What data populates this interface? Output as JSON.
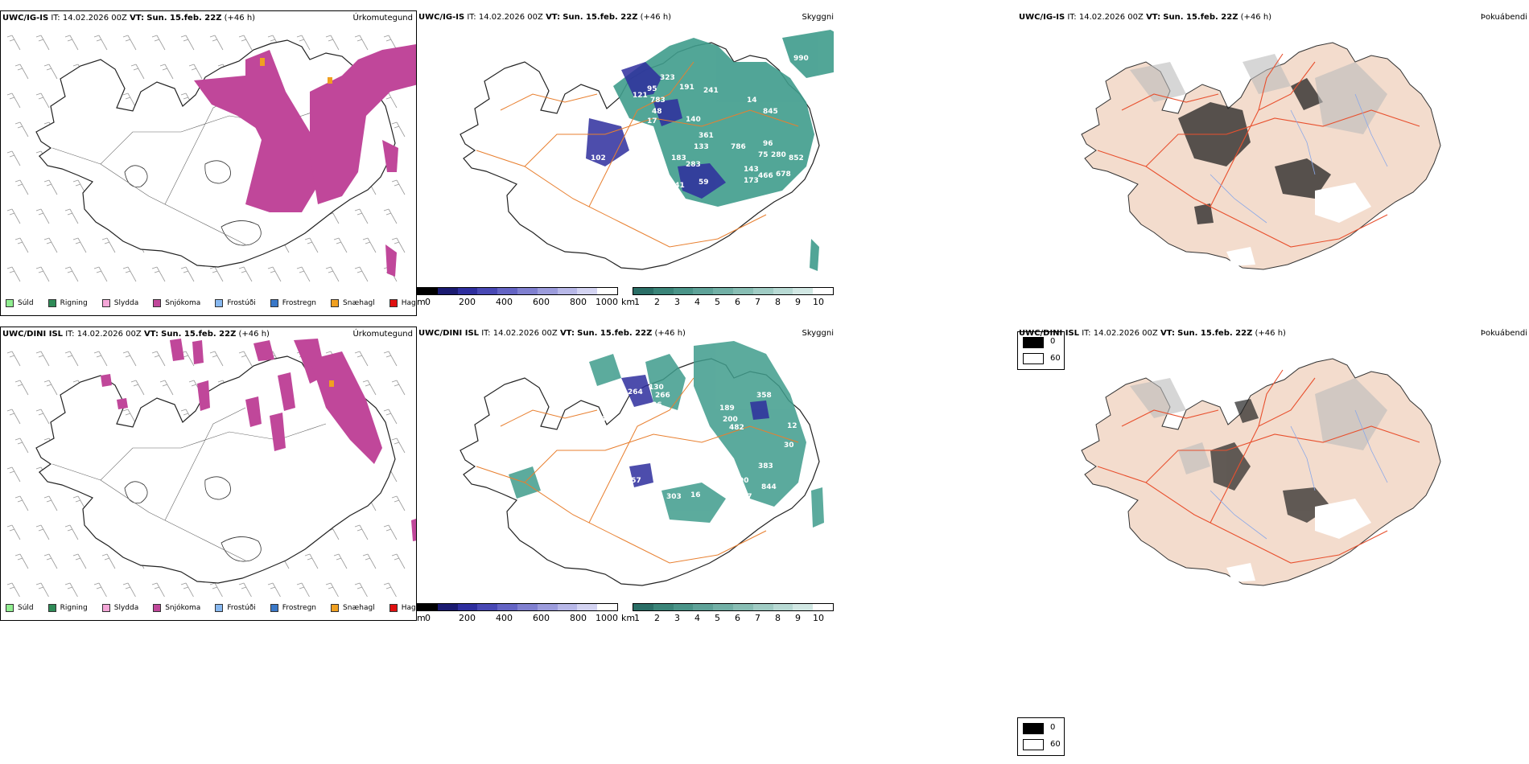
{
  "rows": [
    {
      "model": "UWC/IG-IS",
      "it_label": "IT:",
      "it_value": "14.02.2026 00Z",
      "vt_label": "VT:",
      "vt_value": "Sun. 15.feb. 22Z",
      "lead": "(+46 h)",
      "precip_title": "Úrkomutegund",
      "ceiling_title": "Skyggni",
      "cloud_title": "Þokuábendi",
      "ceiling_values": [
        "990",
        "323",
        "95",
        "783",
        "121",
        "48",
        "191",
        "241",
        "14",
        "17",
        "140",
        "845",
        "361",
        "133",
        "786",
        "96",
        "75",
        "280",
        "852",
        "102",
        "94",
        "183",
        "283",
        "143",
        "108",
        "19",
        "141",
        "59",
        "173",
        "466",
        "678"
      ]
    },
    {
      "model": "UWC/DINI ISL",
      "it_label": "IT:",
      "it_value": "14.02.2026 00Z",
      "vt_label": "VT:",
      "vt_value": "Sun. 15.feb. 22Z",
      "lead": "(+46 h)",
      "precip_title": "Úrkomutegund",
      "ceiling_title": "Skyggni",
      "cloud_title": "Þokuábendi",
      "ceiling_values": [
        "264",
        "130",
        "266",
        "26",
        "358",
        "189",
        "375",
        "230",
        "200",
        "482",
        "12",
        "24",
        "209",
        "30",
        "488",
        "214",
        "97",
        "159",
        "383",
        "157",
        "90",
        "303",
        "16",
        "17",
        "844"
      ]
    }
  ],
  "precip_legend": [
    {
      "label": "Súld",
      "color": "#90ee90"
    },
    {
      "label": "Rigning",
      "color": "#2e8b57"
    },
    {
      "label": "Slydda",
      "color": "#f4a6d7"
    },
    {
      "label": "Snjókoma",
      "color": "#c0479a"
    },
    {
      "label": "Frostúði",
      "color": "#87b8f0"
    },
    {
      "label": "Frostregn",
      "color": "#3a78c8"
    },
    {
      "label": "Snæhagl",
      "color": "#f0a020"
    },
    {
      "label": "Haglél",
      "color": "#e01010"
    }
  ],
  "colorbar_m": {
    "unit": "m",
    "ticks": [
      "0",
      "200",
      "400",
      "600",
      "800",
      "1000"
    ]
  },
  "colorbar_km": {
    "unit": "km",
    "ticks": [
      "1",
      "2",
      "3",
      "4",
      "5",
      "6",
      "7",
      "8",
      "9",
      "10"
    ]
  },
  "cloud_key": {
    "dark_label": "0",
    "light_label": "60"
  },
  "colors": {
    "snow": "#c0479a",
    "ceiling_low": "#2e2e9e",
    "ceiling_high": "#3f9c8c",
    "roads": "#e87f2f",
    "fog_land": "#f3dccd",
    "fog_roads": "#e8502e",
    "rivers": "#8aa8e8"
  }
}
